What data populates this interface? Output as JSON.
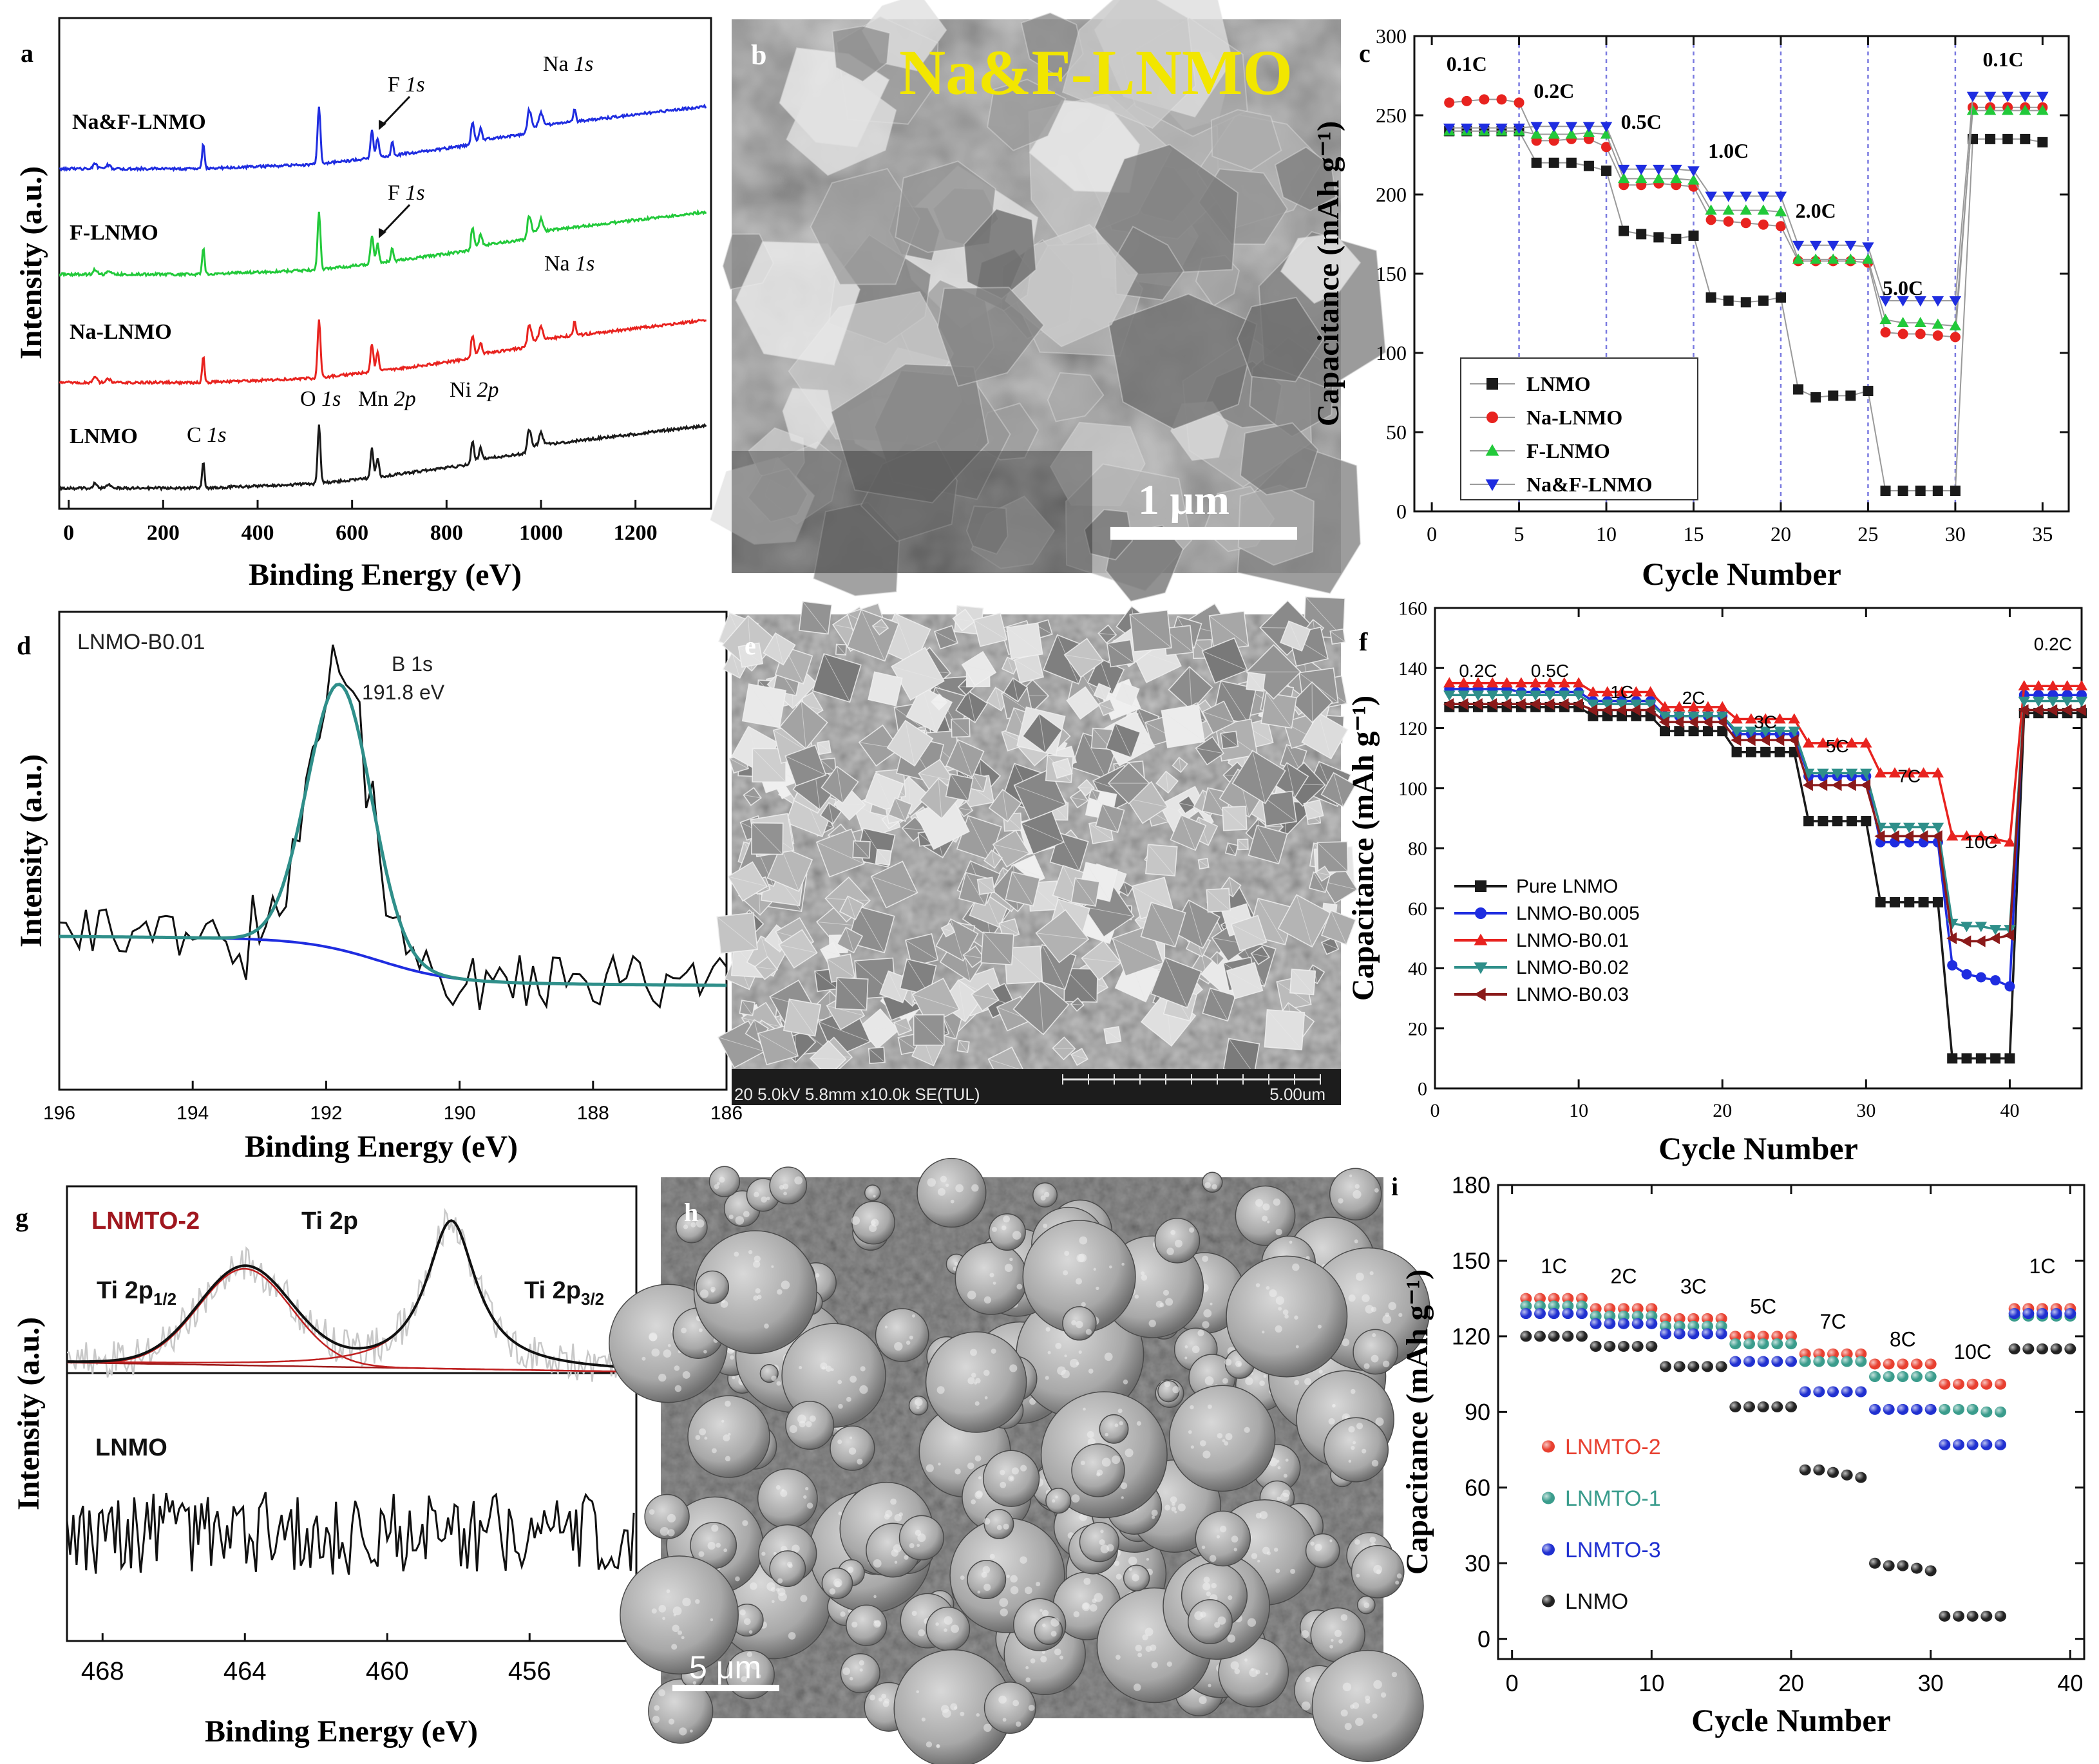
{
  "colors": {
    "black": "#1a1a1a",
    "blue": "#1f2de0",
    "green": "#22c93a",
    "red": "#e8231f",
    "teal": "#2f8f8a",
    "darkred": "#8b1a1a",
    "dashed": "#7a7ae0",
    "i_red": "#e84030",
    "i_teal": "#3a9c8c",
    "i_blue": "#2030d0",
    "i_black": "#222222"
  },
  "panel_a": {
    "letter": "a",
    "xlabel": "Binding Energy (eV)",
    "ylabel": "Intensity (a.u.)",
    "xlim": [
      -20,
      1360
    ],
    "xticks": [
      0,
      200,
      400,
      600,
      800,
      1000,
      1200
    ],
    "series_names": [
      "Na&F-LNMO",
      "F-LNMO",
      "Na-LNMO",
      "LNMO"
    ],
    "annotations": {
      "na1s_top_el": "Na ",
      "na1s_top_orb": "1s",
      "f1s_top_el": "F ",
      "f1s_top_orb": "1s",
      "f1s_mid_el": "F ",
      "f1s_mid_orb": "1s",
      "na1s_mid_el": "Na ",
      "na1s_mid_orb": "1s",
      "c1s_el": "C ",
      "c1s_orb": "1s",
      "o1s_el": "O ",
      "o1s_orb": "1s",
      "mn2p_el": "Mn ",
      "mn2p_orb": "2p",
      "ni2p_el": "Ni ",
      "ni2p_orb": "2p"
    }
  },
  "panel_b": {
    "letter": "b",
    "title": "Na&F-LNMO",
    "scalebar": "1 μm"
  },
  "panel_e": {
    "letter": "e",
    "footer_left": "20 5.0kV 5.8mm x10.0k SE(TUL)",
    "footer_right": "5.00um"
  },
  "panel_h": {
    "letter": "h",
    "scalebar": "5 μm"
  },
  "panel_c": {
    "letter": "c",
    "rate_labels": [
      "0.1C",
      "0.2C",
      "0.5C",
      "1.0C",
      "2.0C",
      "5.0C",
      "0.1C"
    ]
  },
  "panel_d": {
    "letter": "d",
    "sample": "LNMO-B0.01",
    "peak_name": "B 1s",
    "peak_value": "191.8 eV",
    "xlabel": "Binding Energy (eV)",
    "ylabel": "Intensity (a.u.)"
  },
  "panel_f": {
    "letter": "f",
    "rate_labels": [
      "0.2C",
      "0.5C",
      "1C",
      "2C",
      "3C",
      "5C",
      "7C",
      "10C",
      "0.2C"
    ]
  },
  "panel_g": {
    "letter": "g",
    "sample_top": "LNMTO-2",
    "title": "Ti 2p",
    "peak_left_main": "Ti 2p",
    "peak_left_sub": "1/2",
    "peak_right_main": "Ti 2p",
    "peak_right_sub": "3/2",
    "sample_bottom": "LNMO",
    "xlabel": "Binding Energy (eV)",
    "ylabel": "Intensity (a.u.)"
  },
  "panel_i": {
    "letter": "i",
    "rate_labels": [
      "1C",
      "2C",
      "3C",
      "5C",
      "7C",
      "8C",
      "10C",
      "1C"
    ]
  },
  "chart_data": [
    {
      "panel": "c",
      "type": "line",
      "xlabel": "Cycle Number",
      "ylabel": "Capacitance (mAh g⁻¹)",
      "xlim": [
        -1,
        36.5
      ],
      "ylim": [
        0,
        300
      ],
      "xticks": [
        0,
        5,
        10,
        15,
        20,
        25,
        30,
        35
      ],
      "yticks": [
        0,
        50,
        100,
        150,
        200,
        250,
        300
      ],
      "vlines": [
        5,
        10,
        15,
        20,
        25,
        30
      ],
      "x": [
        1,
        2,
        3,
        4,
        5,
        6,
        7,
        8,
        9,
        10,
        11,
        12,
        13,
        14,
        15,
        16,
        17,
        18,
        19,
        20,
        21,
        22,
        23,
        24,
        25,
        26,
        27,
        28,
        29,
        30,
        31,
        32,
        33,
        34,
        35
      ],
      "series": [
        {
          "name": "LNMO",
          "color": "#1a1a1a",
          "marker": "square",
          "values": [
            240,
            240,
            240,
            240,
            240,
            220,
            220,
            220,
            218,
            215,
            177,
            175,
            173,
            172,
            174,
            135,
            133,
            132,
            133,
            135,
            77,
            72,
            73,
            73,
            76,
            13,
            13,
            13,
            13,
            13,
            235,
            235,
            235,
            235,
            233
          ]
        },
        {
          "name": "Na-LNMO",
          "color": "#e8231f",
          "marker": "circle",
          "values": [
            258,
            259,
            260,
            260,
            258,
            234,
            234,
            235,
            235,
            230,
            206,
            206,
            207,
            206,
            205,
            184,
            183,
            182,
            181,
            180,
            158,
            158,
            158,
            158,
            157,
            113,
            112,
            112,
            111,
            110,
            255,
            255,
            255,
            255,
            255
          ]
        },
        {
          "name": "F-LNMO",
          "color": "#22c93a",
          "marker": "triangle-up",
          "values": [
            240,
            240,
            240,
            240,
            240,
            238,
            238,
            238,
            239,
            238,
            210,
            210,
            210,
            210,
            209,
            190,
            190,
            190,
            190,
            189,
            159,
            159,
            159,
            159,
            159,
            121,
            119,
            119,
            118,
            117,
            253,
            253,
            253,
            253,
            253
          ]
        },
        {
          "name": "Na&F-LNMO",
          "color": "#1f2de0",
          "marker": "triangle-down",
          "values": [
            242,
            242,
            242,
            242,
            242,
            243,
            243,
            243,
            243,
            243,
            216,
            216,
            216,
            216,
            215,
            199,
            199,
            199,
            199,
            199,
            168,
            168,
            168,
            168,
            167,
            133,
            133,
            133,
            133,
            133,
            262,
            262,
            262,
            262,
            262
          ]
        }
      ]
    },
    {
      "panel": "f",
      "type": "line",
      "xlabel": "Cycle Number",
      "ylabel": "Capacitance (mAh g⁻¹)",
      "xlim": [
        0,
        45
      ],
      "ylim": [
        0,
        160
      ],
      "xticks": [
        0,
        10,
        20,
        30,
        40
      ],
      "yticks": [
        0,
        20,
        40,
        60,
        80,
        100,
        120,
        140,
        160
      ],
      "x": [
        1,
        2,
        3,
        4,
        5,
        6,
        7,
        8,
        9,
        10,
        11,
        12,
        13,
        14,
        15,
        16,
        17,
        18,
        19,
        20,
        21,
        22,
        23,
        24,
        25,
        26,
        27,
        28,
        29,
        30,
        31,
        32,
        33,
        34,
        35,
        36,
        37,
        38,
        39,
        40,
        41,
        42,
        43,
        44,
        45
      ],
      "series": [
        {
          "name": "Pure LNMO",
          "color": "#1a1a1a",
          "marker": "square",
          "values": [
            127,
            127,
            127,
            127,
            127,
            127,
            127,
            127,
            127,
            127,
            124,
            124,
            124,
            124,
            124,
            119,
            119,
            119,
            119,
            119,
            112,
            112,
            112,
            112,
            112,
            89,
            89,
            89,
            89,
            89,
            62,
            62,
            62,
            62,
            62,
            10,
            10,
            10,
            10,
            10,
            125,
            125,
            125,
            125,
            125
          ]
        },
        {
          "name": "LNMO-B0.005",
          "color": "#1f2de0",
          "marker": "circle",
          "values": [
            133,
            133,
            133,
            133,
            133,
            132,
            132,
            132,
            132,
            132,
            129,
            129,
            129,
            129,
            129,
            124,
            124,
            124,
            124,
            124,
            118,
            118,
            118,
            118,
            118,
            104,
            104,
            104,
            104,
            104,
            82,
            82,
            82,
            82,
            82,
            41,
            38,
            37,
            36,
            34,
            131,
            131,
            131,
            131,
            131
          ]
        },
        {
          "name": "LNMO-B0.01",
          "color": "#e8231f",
          "marker": "triangle-up",
          "values": [
            135,
            135,
            135,
            135,
            135,
            135,
            135,
            135,
            135,
            135,
            132,
            132,
            132,
            132,
            132,
            127,
            127,
            127,
            127,
            127,
            123,
            123,
            123,
            123,
            123,
            115,
            115,
            115,
            115,
            115,
            105,
            105,
            105,
            105,
            105,
            84,
            84,
            84,
            83,
            82,
            134,
            134,
            134,
            134,
            134
          ]
        },
        {
          "name": "LNMO-B0.02",
          "color": "#2f8f8a",
          "marker": "triangle-down",
          "values": [
            131,
            131,
            131,
            131,
            131,
            131,
            131,
            131,
            131,
            131,
            128,
            128,
            128,
            128,
            128,
            124,
            124,
            124,
            124,
            124,
            119,
            119,
            119,
            119,
            119,
            105,
            105,
            105,
            105,
            105,
            87,
            87,
            87,
            87,
            87,
            55,
            54,
            54,
            53,
            53,
            129,
            129,
            129,
            129,
            129
          ]
        },
        {
          "name": "LNMO-B0.03",
          "color": "#8b1a1a",
          "marker": "triangle-left",
          "values": [
            128,
            128,
            128,
            128,
            128,
            128,
            128,
            128,
            128,
            128,
            126,
            126,
            126,
            126,
            126,
            122,
            122,
            122,
            122,
            122,
            116,
            116,
            116,
            116,
            116,
            101,
            101,
            101,
            101,
            101,
            84,
            84,
            84,
            84,
            84,
            50,
            49,
            49,
            50,
            51,
            126,
            126,
            126,
            126,
            126
          ]
        }
      ]
    },
    {
      "panel": "i",
      "type": "scatter",
      "xlabel": "Cycle Number",
      "ylabel": "Capacitance (mAh g⁻¹)",
      "xlim": [
        -1,
        41
      ],
      "ylim": [
        -8,
        180
      ],
      "xticks": [
        0,
        10,
        20,
        30,
        40
      ],
      "yticks": [
        0,
        30,
        60,
        90,
        120,
        150,
        180
      ],
      "x": [
        1,
        2,
        3,
        4,
        5,
        6,
        7,
        8,
        9,
        10,
        11,
        12,
        13,
        14,
        15,
        16,
        17,
        18,
        19,
        20,
        21,
        22,
        23,
        24,
        25,
        26,
        27,
        28,
        29,
        30,
        31,
        32,
        33,
        34,
        35,
        36,
        37,
        38,
        39,
        40
      ],
      "series": [
        {
          "name": "LNMTO-2",
          "color": "#e84030",
          "values": [
            135,
            135,
            135,
            135,
            135,
            131,
            131,
            131,
            131,
            131,
            127,
            127,
            127,
            127,
            127,
            120,
            120,
            120,
            120,
            120,
            113,
            113,
            113,
            113,
            113,
            109,
            109,
            109,
            109,
            109,
            101,
            101,
            101,
            101,
            101,
            131,
            131,
            131,
            131,
            131
          ]
        },
        {
          "name": "LNMTO-1",
          "color": "#3a9c8c",
          "values": [
            132,
            132,
            132,
            132,
            132,
            128,
            128,
            128,
            128,
            128,
            124,
            124,
            124,
            124,
            124,
            117,
            117,
            117,
            117,
            117,
            110,
            110,
            110,
            110,
            110,
            104,
            104,
            104,
            104,
            104,
            91,
            91,
            91,
            90,
            90,
            128,
            128,
            128,
            128,
            128
          ]
        },
        {
          "name": "LNMTO-3",
          "color": "#2030d0",
          "values": [
            129,
            129,
            129,
            129,
            129,
            125,
            125,
            125,
            125,
            125,
            121,
            121,
            121,
            121,
            121,
            110,
            110,
            110,
            110,
            110,
            98,
            98,
            98,
            98,
            98,
            91,
            91,
            91,
            91,
            91,
            77,
            77,
            77,
            77,
            77,
            129,
            129,
            129,
            129,
            129
          ]
        },
        {
          "name": "LNMO",
          "color": "#222222",
          "values": [
            120,
            120,
            120,
            120,
            120,
            116,
            116,
            116,
            116,
            116,
            108,
            108,
            108,
            108,
            108,
            92,
            92,
            92,
            92,
            92,
            67,
            67,
            66,
            65,
            64,
            30,
            29,
            29,
            28,
            27,
            9,
            9,
            9,
            9,
            9,
            115,
            115,
            115,
            115,
            115
          ]
        }
      ]
    }
  ]
}
